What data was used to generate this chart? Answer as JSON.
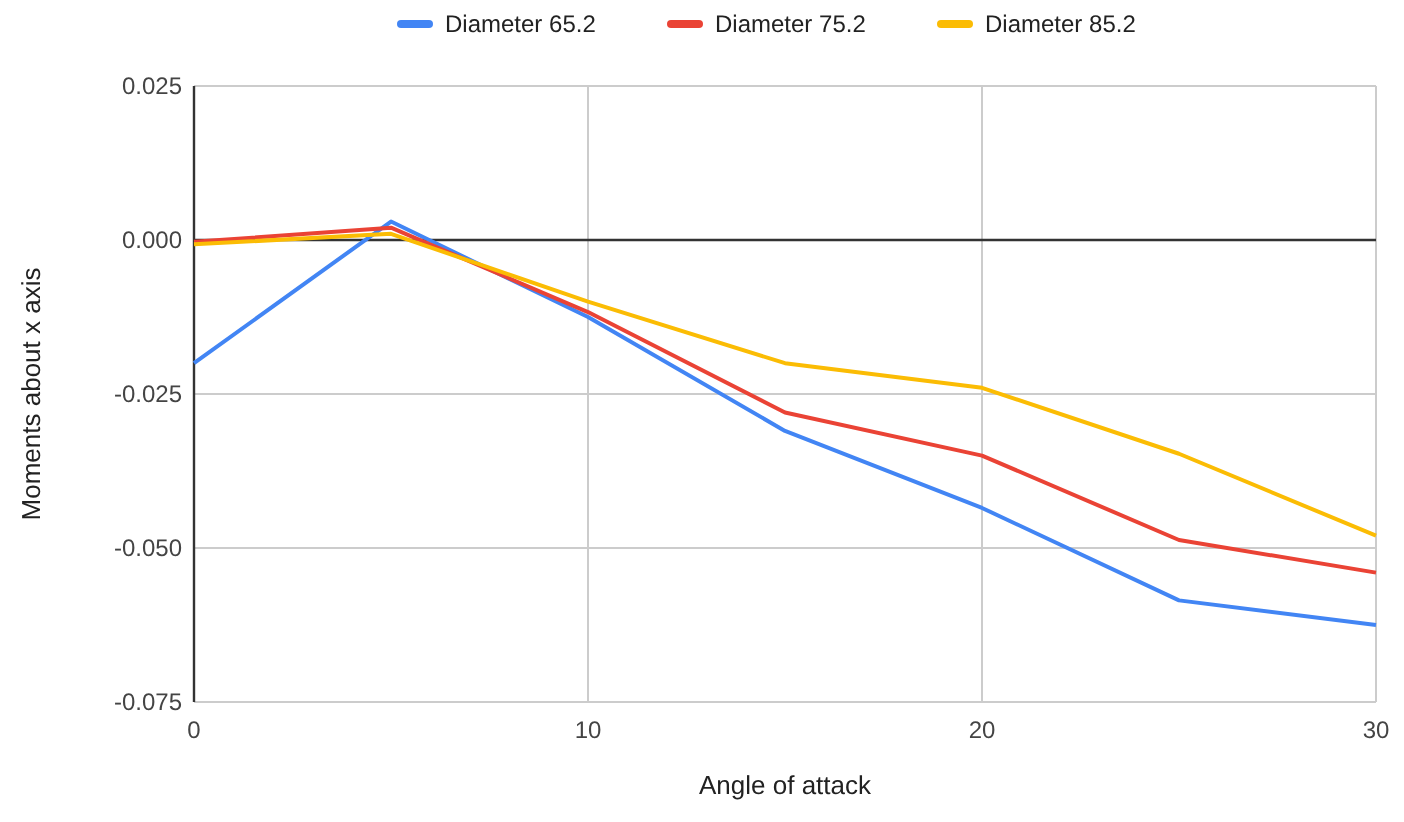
{
  "chart_data": {
    "type": "line",
    "xlabel": "Angle of attack",
    "ylabel": "Moments about x axis",
    "x": [
      0,
      5,
      10,
      15,
      20,
      25,
      30
    ],
    "series": [
      {
        "name": "Diameter 65.2",
        "color": "#4285f4",
        "values": [
          -0.02,
          0.003,
          -0.0125,
          -0.031,
          -0.0435,
          -0.0585,
          -0.0625
        ]
      },
      {
        "name": "Diameter 75.2",
        "color": "#ea4335",
        "values": [
          -0.0003,
          0.002,
          -0.0117,
          -0.028,
          -0.035,
          -0.0487,
          -0.054
        ]
      },
      {
        "name": "Diameter 85.2",
        "color": "#fbbc04",
        "values": [
          -0.0007,
          0.001,
          -0.01,
          -0.02,
          -0.024,
          -0.0347,
          -0.048
        ]
      }
    ],
    "xlim": [
      0,
      30
    ],
    "xticks": [
      0,
      10,
      20,
      30
    ],
    "ylim": [
      -0.075,
      0.025
    ],
    "yticks": [
      {
        "value": -0.075,
        "label": "-0.075"
      },
      {
        "value": -0.05,
        "label": "-0.050"
      },
      {
        "value": -0.025,
        "label": "-0.025"
      },
      {
        "value": 0,
        "label": "0.000"
      },
      {
        "value": 0.025,
        "label": "0.025"
      }
    ],
    "ref_lines": [
      {
        "axis": "y",
        "value": 0,
        "color": "#333333"
      }
    ],
    "grid": true,
    "legend": "top",
    "marker": "none",
    "line_style": "solid"
  }
}
